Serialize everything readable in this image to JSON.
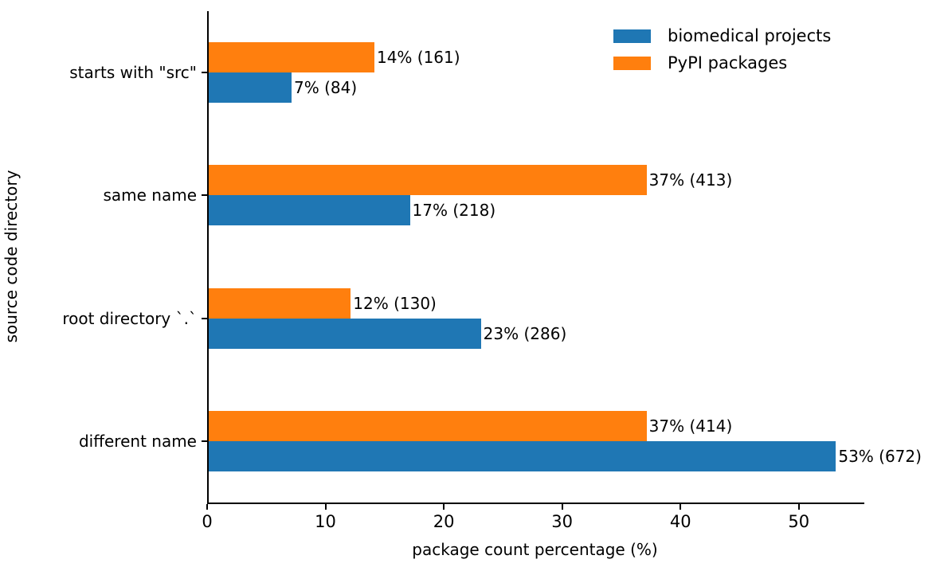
{
  "chart_data": {
    "type": "bar",
    "orientation": "horizontal",
    "title": "",
    "xlabel": "package count percentage (%)",
    "ylabel": "source code directory",
    "categories": [
      "starts with \"src\"",
      "same name",
      "root directory `.`",
      "different name"
    ],
    "series": [
      {
        "name": "biomedical projects",
        "color": "#1f77b4",
        "values": [
          7,
          17,
          23,
          53
        ],
        "counts": [
          84,
          218,
          286,
          672
        ],
        "labels": [
          "7% (84)",
          "17% (218)",
          "23% (286)",
          "53% (672)"
        ]
      },
      {
        "name": "PyPI packages",
        "color": "#ff7f0e",
        "values": [
          14,
          37,
          12,
          37
        ],
        "counts": [
          161,
          413,
          130,
          414
        ],
        "labels": [
          "14% (161)",
          "37% (413)",
          "12% (130)",
          "37% (414)"
        ]
      }
    ],
    "xticks": [
      0,
      10,
      20,
      30,
      40,
      50
    ],
    "xlim": [
      0,
      55.4
    ],
    "grid": false,
    "legend_position": "top-right"
  }
}
